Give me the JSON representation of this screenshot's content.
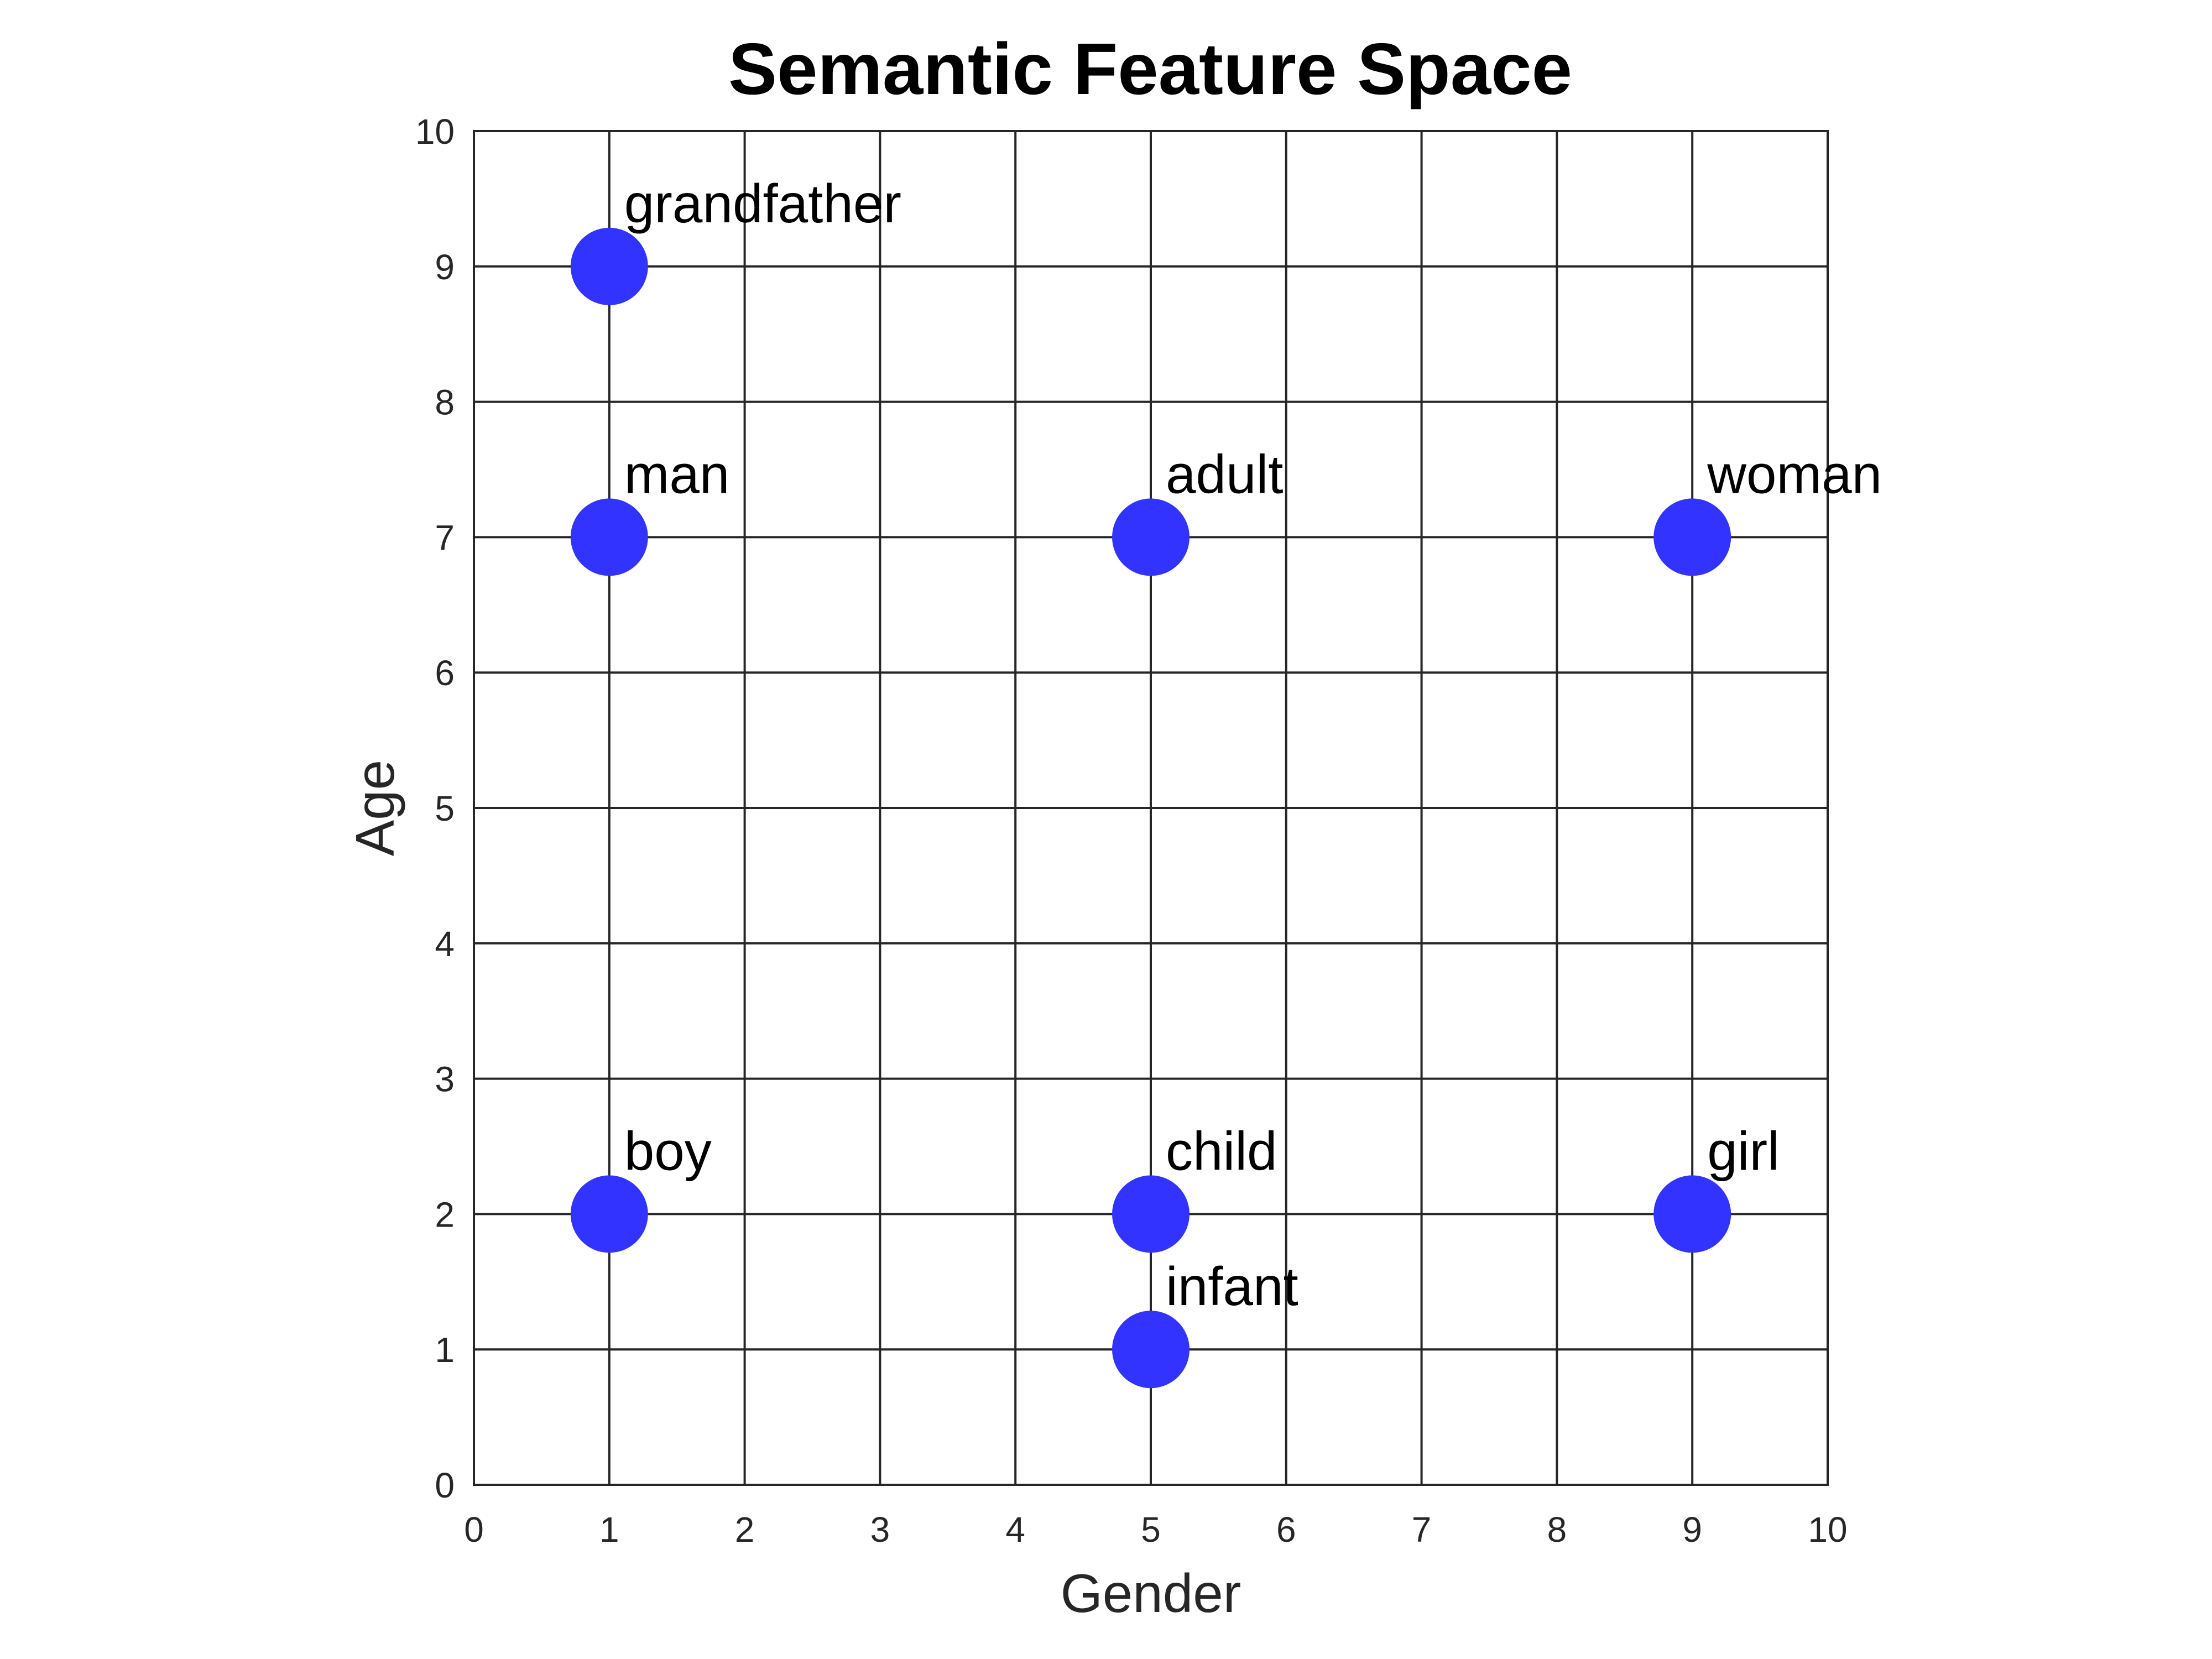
{
  "chart_data": {
    "type": "scatter",
    "title": "Semantic Feature Space",
    "xlabel": "Gender",
    "ylabel": "Age",
    "xlim": [
      0,
      10
    ],
    "ylim": [
      0,
      10
    ],
    "xticks": [
      "0",
      "1",
      "2",
      "3",
      "4",
      "5",
      "6",
      "7",
      "8",
      "9",
      "10"
    ],
    "yticks": [
      "0",
      "1",
      "2",
      "3",
      "4",
      "5",
      "6",
      "7",
      "8",
      "9",
      "10"
    ],
    "grid": true,
    "marker_color": "#3333ff",
    "points": [
      {
        "label": "grandfather",
        "x": 1,
        "y": 9
      },
      {
        "label": "man",
        "x": 1,
        "y": 7
      },
      {
        "label": "adult",
        "x": 5,
        "y": 7
      },
      {
        "label": "woman",
        "x": 9,
        "y": 7
      },
      {
        "label": "boy",
        "x": 1,
        "y": 2
      },
      {
        "label": "child",
        "x": 5,
        "y": 2
      },
      {
        "label": "girl",
        "x": 9,
        "y": 2
      },
      {
        "label": "infant",
        "x": 5,
        "y": 1
      }
    ]
  }
}
